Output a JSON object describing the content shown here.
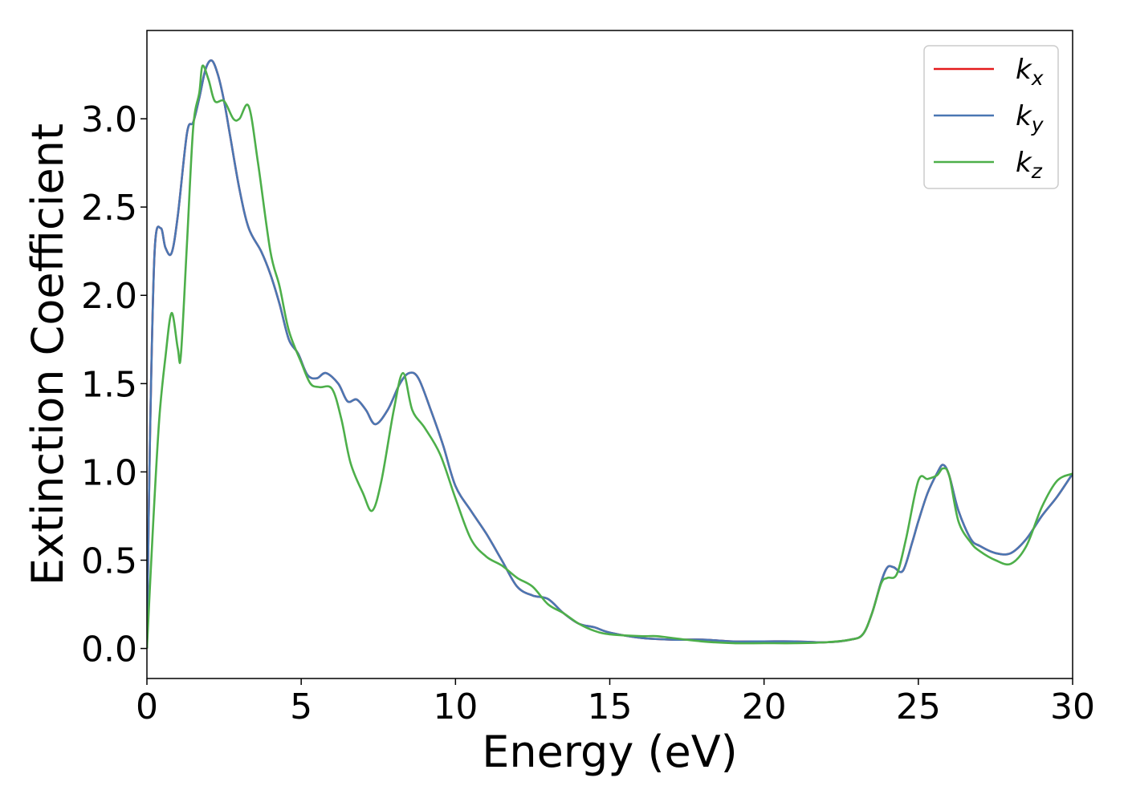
{
  "chart_data": {
    "type": "line",
    "xlabel": "Energy (eV)",
    "ylabel": "Extinction Coefficient",
    "xlim": [
      0,
      30
    ],
    "ylim": [
      -0.17,
      3.5
    ],
    "xticks": [
      0,
      5,
      10,
      15,
      20,
      25,
      30
    ],
    "yticks": [
      0.0,
      0.5,
      1.0,
      1.5,
      2.0,
      2.5,
      3.0
    ],
    "xtick_labels": [
      "0",
      "5",
      "10",
      "15",
      "20",
      "25",
      "30"
    ],
    "ytick_labels": [
      "0.0",
      "0.5",
      "1.0",
      "1.5",
      "2.0",
      "2.5",
      "3.0"
    ],
    "grid": false,
    "legend_position": "top-right",
    "series": [
      {
        "name": "kx",
        "legend_base": "k",
        "legend_sub": "x",
        "color": "#e41a1c",
        "x": [
          0,
          0.1,
          0.25,
          0.45,
          0.6,
          0.8,
          1.0,
          1.3,
          1.5,
          1.7,
          1.9,
          2.1,
          2.3,
          2.5,
          2.7,
          3.0,
          3.3,
          3.7,
          4.0,
          4.3,
          4.6,
          4.9,
          5.2,
          5.5,
          5.8,
          6.2,
          6.5,
          6.8,
          7.1,
          7.4,
          7.8,
          8.2,
          8.5,
          8.8,
          9.2,
          9.6,
          10.0,
          10.5,
          11.0,
          11.5,
          12.0,
          12.5,
          13.0,
          13.5,
          14.0,
          14.5,
          15.0,
          16.0,
          17.0,
          18.0,
          19.0,
          20.0,
          21.0,
          22.0,
          22.8,
          23.2,
          23.5,
          23.8,
          24.0,
          24.2,
          24.5,
          24.8,
          25.0,
          25.3,
          25.6,
          25.8,
          26.0,
          26.3,
          26.7,
          27.0,
          27.5,
          28.0,
          28.5,
          29.0,
          29.5,
          30.0
        ],
        "values": [
          0.0,
          1.2,
          2.25,
          2.38,
          2.27,
          2.24,
          2.45,
          2.92,
          2.98,
          3.12,
          3.28,
          3.33,
          3.25,
          3.1,
          2.9,
          2.6,
          2.38,
          2.25,
          2.12,
          1.95,
          1.75,
          1.67,
          1.55,
          1.53,
          1.56,
          1.5,
          1.4,
          1.41,
          1.35,
          1.27,
          1.35,
          1.5,
          1.56,
          1.53,
          1.35,
          1.15,
          0.92,
          0.78,
          0.65,
          0.5,
          0.35,
          0.3,
          0.28,
          0.2,
          0.14,
          0.12,
          0.09,
          0.06,
          0.05,
          0.05,
          0.04,
          0.04,
          0.04,
          0.035,
          0.05,
          0.08,
          0.2,
          0.38,
          0.46,
          0.46,
          0.44,
          0.6,
          0.72,
          0.88,
          0.99,
          1.04,
          0.98,
          0.78,
          0.62,
          0.58,
          0.54,
          0.54,
          0.62,
          0.75,
          0.86,
          0.99
        ]
      },
      {
        "name": "ky",
        "legend_base": "k",
        "legend_sub": "y",
        "color": "#4a77b3",
        "x": [
          0,
          0.1,
          0.25,
          0.45,
          0.6,
          0.8,
          1.0,
          1.3,
          1.5,
          1.7,
          1.9,
          2.1,
          2.3,
          2.5,
          2.7,
          3.0,
          3.3,
          3.7,
          4.0,
          4.3,
          4.6,
          4.9,
          5.2,
          5.5,
          5.8,
          6.2,
          6.5,
          6.8,
          7.1,
          7.4,
          7.8,
          8.2,
          8.5,
          8.8,
          9.2,
          9.6,
          10.0,
          10.5,
          11.0,
          11.5,
          12.0,
          12.5,
          13.0,
          13.5,
          14.0,
          14.5,
          15.0,
          16.0,
          17.0,
          18.0,
          19.0,
          20.0,
          21.0,
          22.0,
          22.8,
          23.2,
          23.5,
          23.8,
          24.0,
          24.2,
          24.5,
          24.8,
          25.0,
          25.3,
          25.6,
          25.8,
          26.0,
          26.3,
          26.7,
          27.0,
          27.5,
          28.0,
          28.5,
          29.0,
          29.5,
          30.0
        ],
        "values": [
          0.0,
          1.2,
          2.25,
          2.38,
          2.27,
          2.24,
          2.45,
          2.92,
          2.98,
          3.12,
          3.28,
          3.33,
          3.25,
          3.1,
          2.9,
          2.6,
          2.38,
          2.25,
          2.12,
          1.95,
          1.75,
          1.67,
          1.55,
          1.53,
          1.56,
          1.5,
          1.4,
          1.41,
          1.35,
          1.27,
          1.35,
          1.5,
          1.56,
          1.53,
          1.35,
          1.15,
          0.92,
          0.78,
          0.65,
          0.5,
          0.35,
          0.3,
          0.28,
          0.2,
          0.14,
          0.12,
          0.09,
          0.06,
          0.05,
          0.05,
          0.04,
          0.04,
          0.04,
          0.035,
          0.05,
          0.08,
          0.2,
          0.38,
          0.46,
          0.46,
          0.44,
          0.6,
          0.72,
          0.88,
          0.99,
          1.04,
          0.98,
          0.78,
          0.62,
          0.58,
          0.54,
          0.54,
          0.62,
          0.75,
          0.86,
          0.99
        ]
      },
      {
        "name": "kz",
        "legend_base": "k",
        "legend_sub": "z",
        "color": "#4daf4a",
        "x": [
          0,
          0.2,
          0.4,
          0.6,
          0.8,
          1.0,
          1.1,
          1.3,
          1.5,
          1.7,
          1.8,
          2.0,
          2.2,
          2.5,
          2.8,
          3.0,
          3.3,
          3.6,
          4.0,
          4.3,
          4.6,
          5.0,
          5.3,
          5.6,
          6.0,
          6.3,
          6.6,
          7.0,
          7.3,
          7.6,
          8.0,
          8.3,
          8.6,
          9.0,
          9.5,
          10.0,
          10.5,
          11.0,
          11.5,
          12.0,
          12.5,
          13.0,
          13.5,
          14.0,
          14.5,
          15.0,
          16.0,
          16.5,
          17.0,
          18.0,
          19.0,
          20.0,
          21.0,
          22.0,
          22.8,
          23.2,
          23.5,
          23.8,
          24.0,
          24.3,
          24.6,
          25.0,
          25.3,
          25.6,
          25.8,
          26.0,
          26.3,
          26.7,
          27.0,
          27.5,
          28.0,
          28.5,
          29.0,
          29.5,
          30.0
        ],
        "values": [
          0.0,
          0.7,
          1.3,
          1.65,
          1.9,
          1.7,
          1.66,
          2.3,
          2.95,
          3.15,
          3.3,
          3.22,
          3.1,
          3.1,
          3.0,
          3.0,
          3.07,
          2.75,
          2.25,
          2.05,
          1.8,
          1.62,
          1.5,
          1.48,
          1.47,
          1.3,
          1.05,
          0.88,
          0.78,
          0.95,
          1.35,
          1.56,
          1.35,
          1.25,
          1.1,
          0.85,
          0.62,
          0.52,
          0.47,
          0.4,
          0.35,
          0.25,
          0.2,
          0.14,
          0.1,
          0.08,
          0.07,
          0.07,
          0.06,
          0.04,
          0.03,
          0.03,
          0.03,
          0.035,
          0.05,
          0.08,
          0.2,
          0.37,
          0.4,
          0.42,
          0.62,
          0.95,
          0.96,
          0.98,
          1.02,
          0.98,
          0.72,
          0.6,
          0.55,
          0.5,
          0.48,
          0.58,
          0.8,
          0.95,
          0.99
        ]
      }
    ]
  }
}
